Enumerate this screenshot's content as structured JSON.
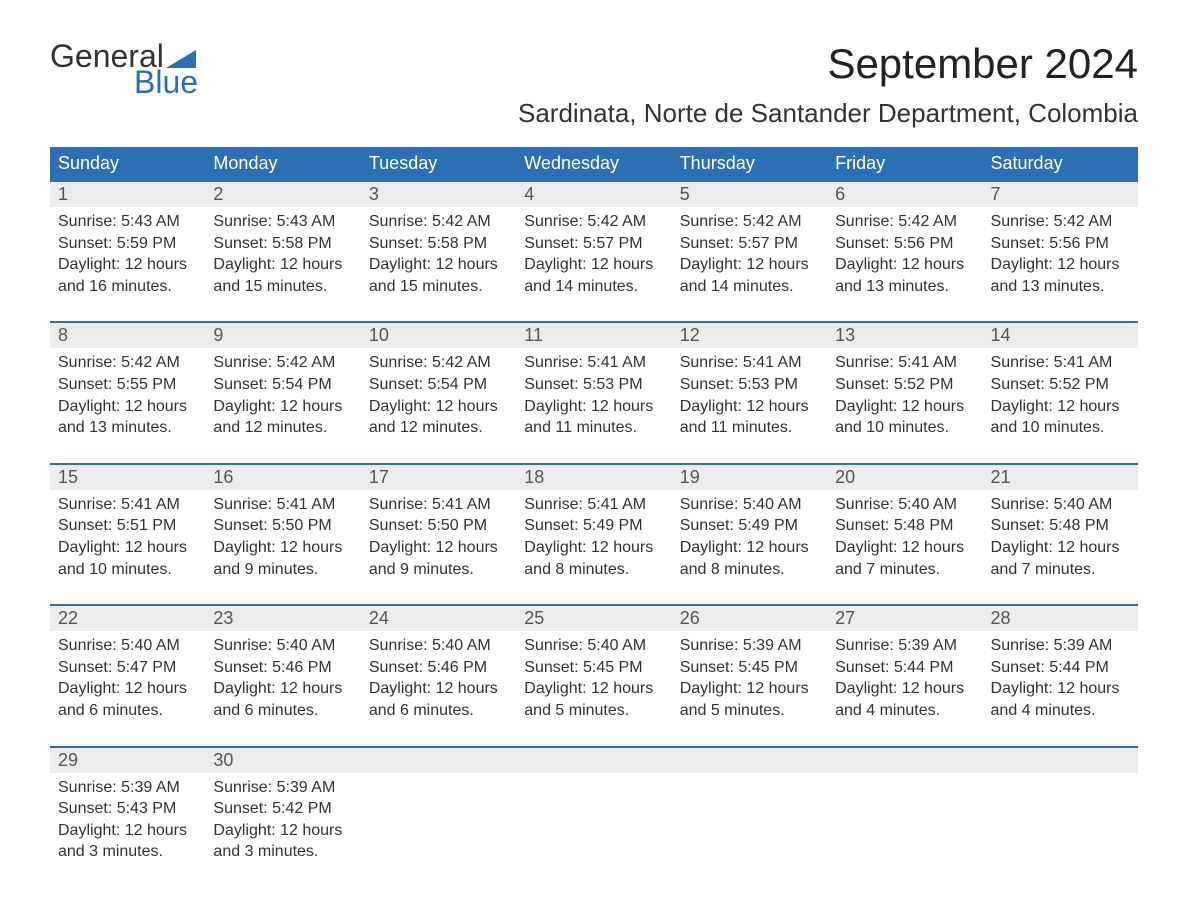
{
  "logo": {
    "line1": "General",
    "line2": "Blue",
    "flag_color": "#2c6fb5"
  },
  "title": "September 2024",
  "location": "Sardinata, Norte de Santander Department, Colombia",
  "colors": {
    "header_bg": "#2c6fb5",
    "header_text": "#ffffff",
    "daynum_bg": "#ececec",
    "daynum_text": "#555555",
    "body_text": "#333333",
    "week_border": "#2c6fb5",
    "page_bg": "#ffffff"
  },
  "typography": {
    "title_fontsize": 42,
    "location_fontsize": 26,
    "weekday_fontsize": 18,
    "daynum_fontsize": 18,
    "info_fontsize": 16
  },
  "weekdays": [
    "Sunday",
    "Monday",
    "Tuesday",
    "Wednesday",
    "Thursday",
    "Friday",
    "Saturday"
  ],
  "weeks": [
    [
      {
        "day": "1",
        "sunrise": "Sunrise: 5:43 AM",
        "sunset": "Sunset: 5:59 PM",
        "daylight1": "Daylight: 12 hours",
        "daylight2": "and 16 minutes."
      },
      {
        "day": "2",
        "sunrise": "Sunrise: 5:43 AM",
        "sunset": "Sunset: 5:58 PM",
        "daylight1": "Daylight: 12 hours",
        "daylight2": "and 15 minutes."
      },
      {
        "day": "3",
        "sunrise": "Sunrise: 5:42 AM",
        "sunset": "Sunset: 5:58 PM",
        "daylight1": "Daylight: 12 hours",
        "daylight2": "and 15 minutes."
      },
      {
        "day": "4",
        "sunrise": "Sunrise: 5:42 AM",
        "sunset": "Sunset: 5:57 PM",
        "daylight1": "Daylight: 12 hours",
        "daylight2": "and 14 minutes."
      },
      {
        "day": "5",
        "sunrise": "Sunrise: 5:42 AM",
        "sunset": "Sunset: 5:57 PM",
        "daylight1": "Daylight: 12 hours",
        "daylight2": "and 14 minutes."
      },
      {
        "day": "6",
        "sunrise": "Sunrise: 5:42 AM",
        "sunset": "Sunset: 5:56 PM",
        "daylight1": "Daylight: 12 hours",
        "daylight2": "and 13 minutes."
      },
      {
        "day": "7",
        "sunrise": "Sunrise: 5:42 AM",
        "sunset": "Sunset: 5:56 PM",
        "daylight1": "Daylight: 12 hours",
        "daylight2": "and 13 minutes."
      }
    ],
    [
      {
        "day": "8",
        "sunrise": "Sunrise: 5:42 AM",
        "sunset": "Sunset: 5:55 PM",
        "daylight1": "Daylight: 12 hours",
        "daylight2": "and 13 minutes."
      },
      {
        "day": "9",
        "sunrise": "Sunrise: 5:42 AM",
        "sunset": "Sunset: 5:54 PM",
        "daylight1": "Daylight: 12 hours",
        "daylight2": "and 12 minutes."
      },
      {
        "day": "10",
        "sunrise": "Sunrise: 5:42 AM",
        "sunset": "Sunset: 5:54 PM",
        "daylight1": "Daylight: 12 hours",
        "daylight2": "and 12 minutes."
      },
      {
        "day": "11",
        "sunrise": "Sunrise: 5:41 AM",
        "sunset": "Sunset: 5:53 PM",
        "daylight1": "Daylight: 12 hours",
        "daylight2": "and 11 minutes."
      },
      {
        "day": "12",
        "sunrise": "Sunrise: 5:41 AM",
        "sunset": "Sunset: 5:53 PM",
        "daylight1": "Daylight: 12 hours",
        "daylight2": "and 11 minutes."
      },
      {
        "day": "13",
        "sunrise": "Sunrise: 5:41 AM",
        "sunset": "Sunset: 5:52 PM",
        "daylight1": "Daylight: 12 hours",
        "daylight2": "and 10 minutes."
      },
      {
        "day": "14",
        "sunrise": "Sunrise: 5:41 AM",
        "sunset": "Sunset: 5:52 PM",
        "daylight1": "Daylight: 12 hours",
        "daylight2": "and 10 minutes."
      }
    ],
    [
      {
        "day": "15",
        "sunrise": "Sunrise: 5:41 AM",
        "sunset": "Sunset: 5:51 PM",
        "daylight1": "Daylight: 12 hours",
        "daylight2": "and 10 minutes."
      },
      {
        "day": "16",
        "sunrise": "Sunrise: 5:41 AM",
        "sunset": "Sunset: 5:50 PM",
        "daylight1": "Daylight: 12 hours",
        "daylight2": "and 9 minutes."
      },
      {
        "day": "17",
        "sunrise": "Sunrise: 5:41 AM",
        "sunset": "Sunset: 5:50 PM",
        "daylight1": "Daylight: 12 hours",
        "daylight2": "and 9 minutes."
      },
      {
        "day": "18",
        "sunrise": "Sunrise: 5:41 AM",
        "sunset": "Sunset: 5:49 PM",
        "daylight1": "Daylight: 12 hours",
        "daylight2": "and 8 minutes."
      },
      {
        "day": "19",
        "sunrise": "Sunrise: 5:40 AM",
        "sunset": "Sunset: 5:49 PM",
        "daylight1": "Daylight: 12 hours",
        "daylight2": "and 8 minutes."
      },
      {
        "day": "20",
        "sunrise": "Sunrise: 5:40 AM",
        "sunset": "Sunset: 5:48 PM",
        "daylight1": "Daylight: 12 hours",
        "daylight2": "and 7 minutes."
      },
      {
        "day": "21",
        "sunrise": "Sunrise: 5:40 AM",
        "sunset": "Sunset: 5:48 PM",
        "daylight1": "Daylight: 12 hours",
        "daylight2": "and 7 minutes."
      }
    ],
    [
      {
        "day": "22",
        "sunrise": "Sunrise: 5:40 AM",
        "sunset": "Sunset: 5:47 PM",
        "daylight1": "Daylight: 12 hours",
        "daylight2": "and 6 minutes."
      },
      {
        "day": "23",
        "sunrise": "Sunrise: 5:40 AM",
        "sunset": "Sunset: 5:46 PM",
        "daylight1": "Daylight: 12 hours",
        "daylight2": "and 6 minutes."
      },
      {
        "day": "24",
        "sunrise": "Sunrise: 5:40 AM",
        "sunset": "Sunset: 5:46 PM",
        "daylight1": "Daylight: 12 hours",
        "daylight2": "and 6 minutes."
      },
      {
        "day": "25",
        "sunrise": "Sunrise: 5:40 AM",
        "sunset": "Sunset: 5:45 PM",
        "daylight1": "Daylight: 12 hours",
        "daylight2": "and 5 minutes."
      },
      {
        "day": "26",
        "sunrise": "Sunrise: 5:39 AM",
        "sunset": "Sunset: 5:45 PM",
        "daylight1": "Daylight: 12 hours",
        "daylight2": "and 5 minutes."
      },
      {
        "day": "27",
        "sunrise": "Sunrise: 5:39 AM",
        "sunset": "Sunset: 5:44 PM",
        "daylight1": "Daylight: 12 hours",
        "daylight2": "and 4 minutes."
      },
      {
        "day": "28",
        "sunrise": "Sunrise: 5:39 AM",
        "sunset": "Sunset: 5:44 PM",
        "daylight1": "Daylight: 12 hours",
        "daylight2": "and 4 minutes."
      }
    ],
    [
      {
        "day": "29",
        "sunrise": "Sunrise: 5:39 AM",
        "sunset": "Sunset: 5:43 PM",
        "daylight1": "Daylight: 12 hours",
        "daylight2": "and 3 minutes."
      },
      {
        "day": "30",
        "sunrise": "Sunrise: 5:39 AM",
        "sunset": "Sunset: 5:42 PM",
        "daylight1": "Daylight: 12 hours",
        "daylight2": "and 3 minutes."
      },
      null,
      null,
      null,
      null,
      null
    ]
  ]
}
